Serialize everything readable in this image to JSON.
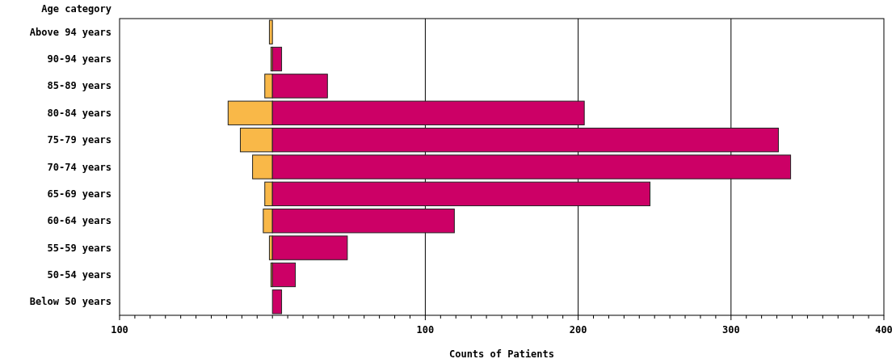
{
  "chart_data": {
    "type": "bar",
    "orientation": "horizontal",
    "stacked": true,
    "xlabel": "Counts of Patients",
    "ylabel": "Age category",
    "categories": [
      "Above 94 years",
      "90-94 years",
      "85-89 years",
      "80-84 years",
      "75-79 years",
      "70-74 years",
      "65-69 years",
      "60-64 years",
      "55-59 years",
      "50-54 years",
      "Below 50 years"
    ],
    "series": [
      {
        "color": "#f9b848",
        "values": [
          -2,
          -1,
          -5,
          -29,
          -21,
          -13,
          -5,
          -6,
          -2,
          -1,
          null
        ]
      },
      {
        "color": "#cc0066",
        "values": [
          null,
          6,
          36,
          204,
          331,
          339,
          247,
          119,
          49,
          15,
          6
        ]
      }
    ],
    "xlim": [
      -100,
      400
    ],
    "xticks": [
      {
        "value": -100,
        "label": "100"
      },
      {
        "value": -90,
        "label": null
      },
      {
        "value": -80,
        "label": null
      },
      {
        "value": -70,
        "label": null
      },
      {
        "value": -60,
        "label": null
      },
      {
        "value": -50,
        "label": null
      },
      {
        "value": -40,
        "label": null
      },
      {
        "value": -30,
        "label": null
      },
      {
        "value": -20,
        "label": null
      },
      {
        "value": -10,
        "label": null
      },
      {
        "value": 0,
        "label": null
      },
      {
        "value": 10,
        "label": null
      },
      {
        "value": 20,
        "label": null
      },
      {
        "value": 30,
        "label": null
      },
      {
        "value": 40,
        "label": null
      },
      {
        "value": 50,
        "label": null
      },
      {
        "value": 60,
        "label": null
      },
      {
        "value": 70,
        "label": null
      },
      {
        "value": 80,
        "label": null
      },
      {
        "value": 90,
        "label": null
      },
      100,
      {
        "value": 110,
        "label": null
      },
      {
        "value": 120,
        "label": null
      },
      {
        "value": 130,
        "label": null
      },
      {
        "value": 140,
        "label": null
      },
      {
        "value": 150,
        "label": null
      },
      {
        "value": 160,
        "label": null
      },
      {
        "value": 170,
        "label": null
      },
      {
        "value": 180,
        "label": null
      },
      {
        "value": 190,
        "label": null
      },
      200,
      {
        "value": 210,
        "label": null
      },
      {
        "value": 220,
        "label": null
      },
      {
        "value": 230,
        "label": null
      },
      {
        "value": 240,
        "label": null
      },
      {
        "value": 250,
        "label": null
      },
      {
        "value": 260,
        "label": null
      },
      {
        "value": 270,
        "label": null
      },
      {
        "value": 280,
        "label": null
      },
      {
        "value": 290,
        "label": null
      },
      300,
      {
        "value": 310,
        "label": null
      },
      {
        "value": 320,
        "label": null
      },
      {
        "value": 330,
        "label": null
      },
      {
        "value": 340,
        "label": null
      },
      {
        "value": 350,
        "label": null
      },
      {
        "value": 360,
        "label": null
      },
      {
        "value": 370,
        "label": null
      },
      {
        "value": 380,
        "label": null
      },
      {
        "value": 390,
        "label": null
      },
      400
    ],
    "grid": "x"
  }
}
